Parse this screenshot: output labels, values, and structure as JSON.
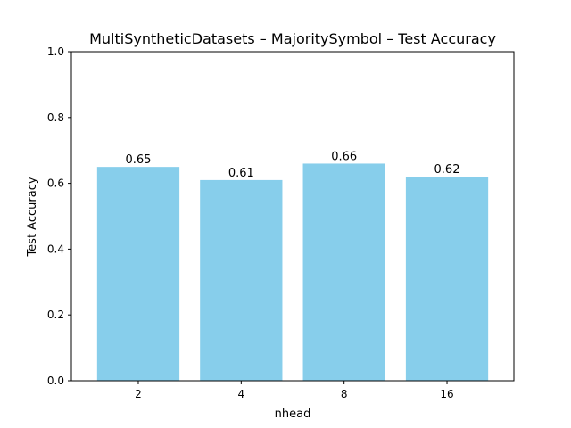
{
  "chart_data": {
    "type": "bar",
    "title": "MultiSyntheticDatasets – MajoritySymbol – Test Accuracy",
    "xlabel": "nhead",
    "ylabel": "Test Accuracy",
    "categories": [
      "2",
      "4",
      "8",
      "16"
    ],
    "values": [
      0.65,
      0.61,
      0.66,
      0.62
    ],
    "data_labels": [
      "0.65",
      "0.61",
      "0.66",
      "0.62"
    ],
    "ylim": [
      0,
      1.0
    ],
    "yticks": [
      0.0,
      0.2,
      0.4,
      0.6,
      0.8,
      1.0
    ],
    "ytick_labels": [
      "0.0",
      "0.2",
      "0.4",
      "0.6",
      "0.8",
      "1.0"
    ],
    "bar_color": "#87ceeb",
    "grid": false,
    "legend": "none"
  }
}
